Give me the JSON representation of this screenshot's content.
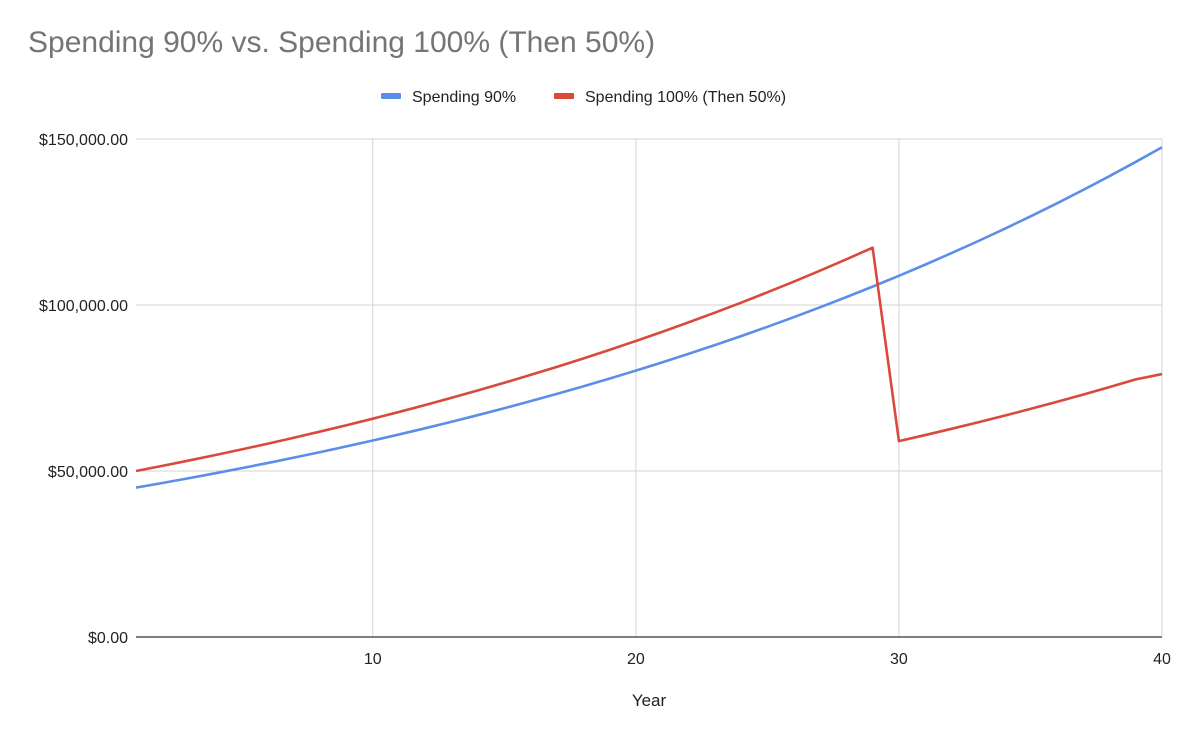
{
  "chart_data": {
    "type": "line",
    "title": "Spending 90% vs. Spending 100% (Then 50%)",
    "xlabel": "Year",
    "ylabel": "",
    "xlim": [
      1,
      40
    ],
    "ylim": [
      0,
      150000
    ],
    "x_ticks": [
      10,
      20,
      30,
      40
    ],
    "y_ticks": [
      0,
      50000,
      100000,
      150000
    ],
    "x_tick_labels": [
      "10",
      "20",
      "30",
      "40"
    ],
    "y_tick_labels": [
      "$0.00",
      "$50,000.00",
      "$100,000.00",
      "$150,000.00"
    ],
    "grid": true,
    "legend_position": "top",
    "x": [
      1,
      2,
      3,
      4,
      5,
      6,
      7,
      8,
      9,
      10,
      11,
      12,
      13,
      14,
      15,
      16,
      17,
      18,
      19,
      20,
      21,
      22,
      23,
      24,
      25,
      26,
      27,
      28,
      29,
      30,
      31,
      32,
      33,
      34,
      35,
      36,
      37,
      38,
      39,
      40
    ],
    "series": [
      {
        "name": "Spending 90%",
        "color": "#5a8ee8",
        "values": [
          45000,
          46391,
          47825,
          49303,
          50827,
          52398,
          54018,
          55688,
          57409,
          59184,
          61013,
          62899,
          64844,
          66848,
          68914,
          71044,
          73240,
          75504,
          77838,
          80244,
          82725,
          85282,
          87918,
          90636,
          93437,
          96325,
          99303,
          102372,
          105537,
          108799,
          112162,
          115629,
          119203,
          122888,
          126686,
          130602,
          134639,
          138801,
          143091,
          147514
        ]
      },
      {
        "name": "Spending 100% (Then 50%)",
        "color": "#d9493c",
        "values": [
          50000,
          51546,
          53139,
          54782,
          56475,
          58221,
          60020,
          61876,
          63788,
          65760,
          67793,
          69888,
          72049,
          74276,
          76571,
          78938,
          81378,
          83894,
          86486,
          89160,
          91916,
          94757,
          97686,
          100706,
          103819,
          107028,
          110336,
          113747,
          117264,
          59000,
          60824,
          62704,
          64642,
          66640,
          68700,
          70824,
          73013,
          75270,
          77597,
          79195
        ]
      }
    ]
  }
}
